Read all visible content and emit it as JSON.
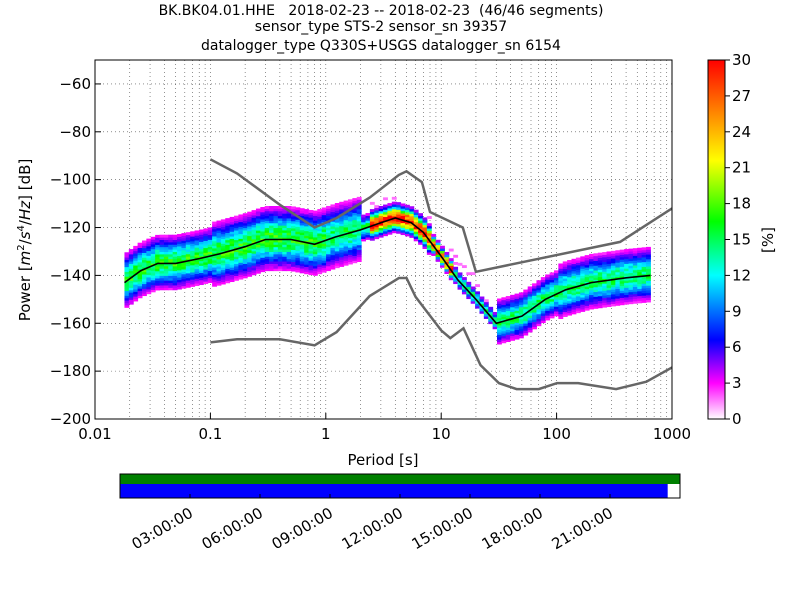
{
  "chart_data": {
    "type": "heatmap",
    "title_lines": [
      "BK.BK04.01.HHE   2018-02-23 -- 2018-02-23  (46/46 segments)",
      "sensor_type STS-2 sensor_sn 39357",
      "datalogger_type Q330S+USGS datalogger_sn 6154"
    ],
    "xlabel": "Period [s]",
    "ylabel_parts": [
      "Power [",
      "m",
      "2",
      "/",
      "s",
      "4",
      "/",
      "Hz",
      "] [dB]"
    ],
    "x_scale": "log",
    "xlim": [
      0.01,
      1000
    ],
    "ylim": [
      -200,
      -50
    ],
    "x_ticks": [
      {
        "v": 0.01,
        "label": "0.01"
      },
      {
        "v": 0.1,
        "label": "0.1"
      },
      {
        "v": 1,
        "label": "1"
      },
      {
        "v": 10,
        "label": "10"
      },
      {
        "v": 100,
        "label": "100"
      },
      {
        "v": 1000,
        "label": "1000"
      }
    ],
    "y_ticks": [
      {
        "v": -60,
        "label": "−60"
      },
      {
        "v": -80,
        "label": "−80"
      },
      {
        "v": -100,
        "label": "−100"
      },
      {
        "v": -120,
        "label": "−120"
      },
      {
        "v": -140,
        "label": "−140"
      },
      {
        "v": -160,
        "label": "−160"
      },
      {
        "v": -180,
        "label": "−180"
      },
      {
        "v": -200,
        "label": "−200"
      }
    ],
    "grid": true,
    "noise_models": {
      "high": [
        [
          0.1,
          -91.5
        ],
        [
          0.17,
          -97.4
        ],
        [
          0.4,
          -110.5
        ],
        [
          0.8,
          -120
        ],
        [
          1.24,
          -116
        ],
        [
          2.4,
          -107.5
        ],
        [
          4.3,
          -98
        ],
        [
          5,
          -96.5
        ],
        [
          6.8,
          -101
        ],
        [
          8,
          -113.5
        ],
        [
          15.4,
          -120
        ],
        [
          20,
          -138.5
        ],
        [
          354.8,
          -126
        ],
        [
          1000,
          -112
        ]
      ],
      "low": [
        [
          0.1,
          -168
        ],
        [
          0.17,
          -166.7
        ],
        [
          0.4,
          -166.7
        ],
        [
          0.8,
          -169.2
        ],
        [
          1.24,
          -163.7
        ],
        [
          2.4,
          -148.6
        ],
        [
          4.3,
          -141.1
        ],
        [
          5,
          -141.1
        ],
        [
          6,
          -149
        ],
        [
          10,
          -163
        ],
        [
          12,
          -166.2
        ],
        [
          15.6,
          -162.1
        ],
        [
          21.9,
          -177.5
        ],
        [
          31.6,
          -185
        ],
        [
          45,
          -187.5
        ],
        [
          70,
          -187.5
        ],
        [
          101,
          -185
        ],
        [
          154,
          -185
        ],
        [
          328,
          -187.5
        ],
        [
          600,
          -184.4
        ],
        [
          1000,
          -178.5
        ]
      ]
    },
    "mean_curve": [
      [
        0.018,
        -143
      ],
      [
        0.025,
        -138
      ],
      [
        0.035,
        -135
      ],
      [
        0.05,
        -135
      ],
      [
        0.08,
        -133
      ],
      [
        0.12,
        -131
      ],
      [
        0.2,
        -128
      ],
      [
        0.3,
        -125
      ],
      [
        0.5,
        -125
      ],
      [
        0.8,
        -127
      ],
      [
        1.2,
        -124
      ],
      [
        2,
        -121
      ],
      [
        3,
        -118
      ],
      [
        4,
        -116
      ],
      [
        5.5,
        -118
      ],
      [
        7,
        -122
      ],
      [
        10,
        -132
      ],
      [
        14,
        -142
      ],
      [
        20,
        -150
      ],
      [
        30,
        -160
      ],
      [
        50,
        -157
      ],
      [
        80,
        -150
      ],
      [
        120,
        -146
      ],
      [
        200,
        -143
      ],
      [
        400,
        -141
      ],
      [
        650,
        -140
      ]
    ],
    "colorbar": {
      "label": "[%]",
      "min": 0,
      "max": 30,
      "ticks": [
        0,
        3,
        6,
        9,
        12,
        15,
        18,
        21,
        24,
        27,
        30
      ]
    },
    "timeline": {
      "tick_labels": [
        "03:00:00",
        "06:00:00",
        "09:00:00",
        "12:00:00",
        "15:00:00",
        "18:00:00",
        "21:00:00"
      ],
      "tick_fractions": [
        0.125,
        0.25,
        0.375,
        0.5,
        0.625,
        0.75,
        0.875
      ],
      "data_coverage": {
        "start": 0,
        "end": 1,
        "color": "#008000"
      },
      "psd_coverage": {
        "start": 0,
        "end": 0.978,
        "color": "#0000ff"
      }
    }
  }
}
